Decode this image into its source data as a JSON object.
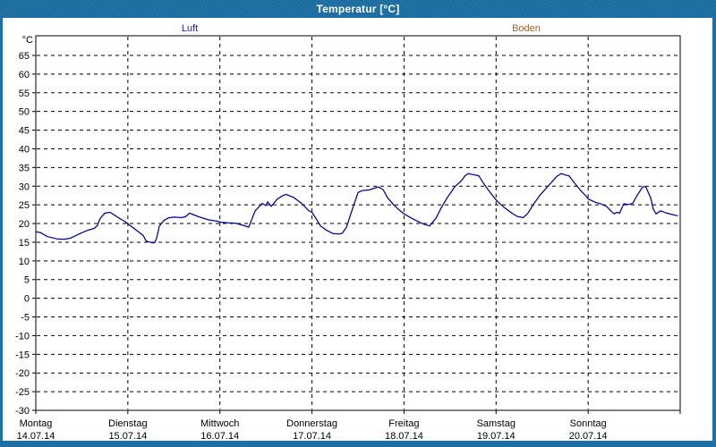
{
  "window": {
    "title": "Temperatur [°C]"
  },
  "colors": {
    "frame_blue": "#1D6FA5",
    "title_text": "#FFFFFF",
    "plot_bg": "#FFFFFF",
    "grid": "#000000",
    "axis_text": "#000000",
    "line_luft": "#00009C",
    "legend_luft_text": "#2020CC",
    "legend_boden_text": "#996633"
  },
  "legend": [
    {
      "label": "Luft",
      "color": "#2020CC"
    },
    {
      "label": "Boden",
      "color": "#996633"
    }
  ],
  "chart_data": {
    "type": "line",
    "title": "Temperatur [°C]",
    "ylabel": "°C",
    "y_unit_label": "°C",
    "ylim": [
      -30,
      70
    ],
    "y_tick_step": 5,
    "y_tick_labels": [
      "65",
      "60",
      "55",
      "50",
      "45",
      "40",
      "35",
      "30",
      "25",
      "20",
      "15",
      "10",
      "5",
      "0",
      "-5",
      "-10",
      "-15",
      "-20",
      "-25",
      "-30"
    ],
    "grid": "dashed",
    "legend_position": "top",
    "x_axis": {
      "unit": "hours_from_monday_00",
      "range_hours": [
        0,
        168
      ],
      "days": [
        {
          "name": "Montag",
          "date": "14.07.14"
        },
        {
          "name": "Dienstag",
          "date": "15.07.14"
        },
        {
          "name": "Mittwoch",
          "date": "16.07.14"
        },
        {
          "name": "Donnerstag",
          "date": "17.07.14"
        },
        {
          "name": "Freitag",
          "date": "18.07.14"
        },
        {
          "name": "Samstag",
          "date": "19.07.14"
        },
        {
          "name": "Sonntag",
          "date": "20.07.14"
        }
      ]
    },
    "series": [
      {
        "name": "Luft",
        "color": "#00009C",
        "points": [
          [
            0,
            17.8
          ],
          [
            1.2,
            17.6
          ],
          [
            3,
            16.5
          ],
          [
            5.5,
            15.9
          ],
          [
            7.5,
            15.8
          ],
          [
            9,
            16.1
          ],
          [
            11.7,
            17.4
          ],
          [
            13.5,
            18.2
          ],
          [
            15.2,
            18.7
          ],
          [
            16,
            19.4
          ],
          [
            16.8,
            21.4
          ],
          [
            18,
            22.8
          ],
          [
            19.4,
            23.0
          ],
          [
            21.5,
            21.6
          ],
          [
            23.3,
            20.5
          ],
          [
            24,
            19.9
          ],
          [
            26,
            18.4
          ],
          [
            28,
            16.8
          ],
          [
            28.8,
            15.3
          ],
          [
            30.5,
            14.8
          ],
          [
            31,
            14.9
          ],
          [
            31.5,
            16.1
          ],
          [
            32.2,
            19.3
          ],
          [
            33.4,
            20.8
          ],
          [
            34.5,
            21.5
          ],
          [
            36,
            21.7
          ],
          [
            38,
            21.6
          ],
          [
            39,
            21.8
          ],
          [
            40.1,
            22.8
          ],
          [
            41,
            22.4
          ],
          [
            42.5,
            21.8
          ],
          [
            45,
            21.0
          ],
          [
            47.4,
            20.6
          ],
          [
            48,
            20.4
          ],
          [
            50,
            20.2
          ],
          [
            52,
            20.1
          ],
          [
            54.5,
            19.4
          ],
          [
            55.5,
            19.0
          ],
          [
            57.2,
            23.4
          ],
          [
            59,
            25.4
          ],
          [
            60,
            24.8
          ],
          [
            60.4,
            25.8
          ],
          [
            61.4,
            24.6
          ],
          [
            63,
            26.6
          ],
          [
            64.6,
            27.6
          ],
          [
            65.3,
            27.8
          ],
          [
            67.2,
            27.0
          ],
          [
            69.3,
            25.4
          ],
          [
            71.2,
            23.4
          ],
          [
            72,
            23.0
          ],
          [
            73,
            21.4
          ],
          [
            74.2,
            19.4
          ],
          [
            75.8,
            18.2
          ],
          [
            77.5,
            17.3
          ],
          [
            79,
            17.2
          ],
          [
            79.9,
            17.4
          ],
          [
            81,
            19.0
          ],
          [
            82.4,
            23.4
          ],
          [
            84,
            28.3
          ],
          [
            85,
            28.8
          ],
          [
            87,
            29.0
          ],
          [
            88.7,
            29.6
          ],
          [
            89.4,
            29.8
          ],
          [
            90.6,
            29.0
          ],
          [
            91.7,
            26.9
          ],
          [
            93.3,
            25.0
          ],
          [
            95,
            23.4
          ],
          [
            96,
            22.6
          ],
          [
            98,
            21.4
          ],
          [
            100.3,
            20.2
          ],
          [
            101.5,
            19.7
          ],
          [
            102.7,
            19.4
          ],
          [
            104.3,
            21.4
          ],
          [
            105.7,
            24.2
          ],
          [
            107.3,
            27.0
          ],
          [
            109.2,
            29.8
          ],
          [
            111,
            31.5
          ],
          [
            111.9,
            32.8
          ],
          [
            112.7,
            33.4
          ],
          [
            114,
            33.1
          ],
          [
            115.5,
            32.8
          ],
          [
            116.7,
            30.8
          ],
          [
            117.8,
            29.2
          ],
          [
            119,
            27.6
          ],
          [
            120,
            26.3
          ],
          [
            122,
            24.4
          ],
          [
            124.1,
            22.8
          ],
          [
            125.5,
            21.9
          ],
          [
            127.1,
            21.6
          ],
          [
            128.3,
            22.8
          ],
          [
            129.9,
            25.4
          ],
          [
            131.3,
            27.4
          ],
          [
            133.7,
            30.2
          ],
          [
            135.8,
            32.6
          ],
          [
            137,
            33.4
          ],
          [
            138,
            33.0
          ],
          [
            139,
            32.8
          ],
          [
            140.5,
            30.8
          ],
          [
            142,
            28.9
          ],
          [
            143.5,
            27.3
          ],
          [
            144,
            26.6
          ],
          [
            145.8,
            25.7
          ],
          [
            147.5,
            25.2
          ],
          [
            148.9,
            24.5
          ],
          [
            150,
            23.3
          ],
          [
            150.8,
            22.6
          ],
          [
            151.5,
            23.0
          ],
          [
            152.2,
            22.8
          ],
          [
            153.3,
            25.3
          ],
          [
            154.5,
            25.1
          ],
          [
            155.6,
            25.4
          ],
          [
            156.8,
            27.6
          ],
          [
            158.2,
            29.8
          ],
          [
            159,
            29.9
          ],
          [
            160.3,
            26.9
          ],
          [
            161,
            23.8
          ],
          [
            161.7,
            22.6
          ],
          [
            162.9,
            23.4
          ],
          [
            164.5,
            22.8
          ],
          [
            166,
            22.4
          ],
          [
            167.3,
            22.1
          ]
        ]
      },
      {
        "name": "Boden",
        "color": "#996633",
        "points": []
      }
    ]
  }
}
